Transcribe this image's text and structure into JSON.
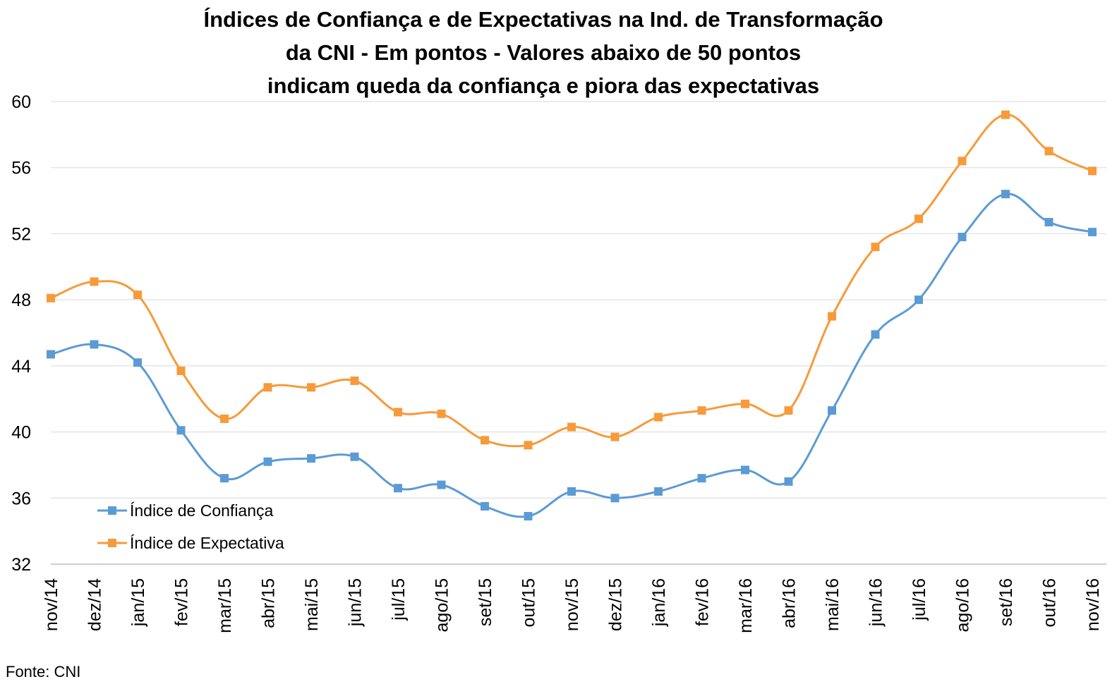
{
  "chart_data": {
    "type": "line",
    "title_lines": [
      "Índices de Confiança e de Expectativas na Ind. de Transformação",
      "da CNI - Em pontos - Valores abaixo de 50 pontos",
      "indicam queda da confiança e piora das expectativas"
    ],
    "xlabel": "",
    "ylabel": "",
    "ylim": [
      32,
      60
    ],
    "yticks": [
      "32",
      "36",
      "40",
      "44",
      "48",
      "52",
      "56",
      "60"
    ],
    "categories": [
      "nov/14",
      "dez/14",
      "jan/15",
      "fev/15",
      "mar/15",
      "abr/15",
      "mai/15",
      "jun/15",
      "jul/15",
      "ago/15",
      "set/15",
      "out/15",
      "nov/15",
      "dez/15",
      "jan/16",
      "fev/16",
      "mar/16",
      "abr/16",
      "mai/16",
      "jun/16",
      "jul/16",
      "ago/16",
      "set/16",
      "out/16",
      "nov/16"
    ],
    "series": [
      {
        "name": "Índice de Confiança",
        "color": "#5b9bd5",
        "values": [
          44.7,
          45.3,
          44.2,
          40.1,
          37.2,
          38.2,
          38.4,
          38.5,
          36.6,
          36.8,
          35.5,
          34.9,
          36.4,
          36.0,
          36.4,
          37.2,
          37.7,
          37.0,
          41.3,
          45.9,
          48.0,
          51.8,
          54.4,
          52.7,
          52.1
        ]
      },
      {
        "name": "Índice de Expectativa",
        "color": "#f79a3a",
        "values": [
          48.1,
          49.1,
          48.3,
          43.7,
          40.8,
          42.7,
          42.7,
          43.1,
          41.2,
          41.1,
          39.5,
          39.2,
          40.3,
          39.7,
          40.9,
          41.3,
          41.7,
          41.3,
          47.0,
          51.2,
          52.9,
          56.4,
          59.2,
          57.0,
          55.8
        ]
      }
    ],
    "grid": true,
    "legend_position": "bottom-left"
  },
  "source_note": "Fonte: CNI"
}
